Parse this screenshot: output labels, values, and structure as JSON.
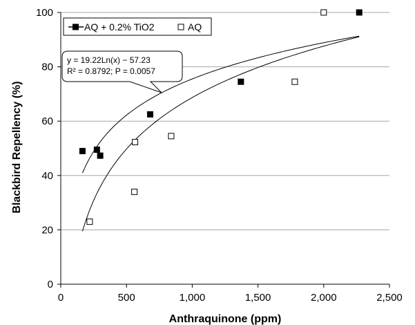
{
  "chart_data": {
    "type": "scatter",
    "xlabel": "Anthraquinone (ppm)",
    "ylabel": "Blackbird Repellency (%)",
    "xlim": [
      0,
      2500
    ],
    "ylim": [
      0,
      100
    ],
    "x_ticks": [
      0,
      500,
      1000,
      1500,
      2000,
      2500
    ],
    "x_tick_labels": [
      "0",
      "500",
      "1,000",
      "1,500",
      "2,000",
      "2,500"
    ],
    "y_ticks": [
      0,
      20,
      40,
      60,
      80,
      100
    ],
    "y_tick_labels": [
      "0",
      "20",
      "40",
      "60",
      "80",
      "100"
    ],
    "grid": "horizontal",
    "legend_position": "top-left",
    "series": [
      {
        "name": "AQ + 0.2% TiO2",
        "marker": "filled-square",
        "color": "#000000",
        "points": [
          [
            165,
            49
          ],
          [
            275,
            49.5
          ],
          [
            300,
            47.3
          ],
          [
            680,
            62.5
          ],
          [
            1370,
            74.5
          ],
          [
            2270,
            100
          ]
        ]
      },
      {
        "name": "AQ",
        "marker": "open-square",
        "color": "#000000",
        "points": [
          [
            220,
            23
          ],
          [
            560,
            34
          ],
          [
            565,
            52.3
          ],
          [
            840,
            54.5
          ],
          [
            1780,
            74.5
          ],
          [
            2000,
            100
          ]
        ]
      }
    ],
    "trendlines": [
      {
        "type": "logarithmic",
        "a": 19.22,
        "b": -57.23,
        "x_range": [
          165,
          2270
        ]
      },
      {
        "type": "logarithmic",
        "a": 27.3,
        "b": -119.9,
        "x_range": [
          165,
          2270
        ]
      }
    ],
    "annotation": {
      "lines": [
        "y = 19.22Ln(x) − 57.23",
        "R² = 0.8792; P = 0.0057"
      ]
    }
  }
}
